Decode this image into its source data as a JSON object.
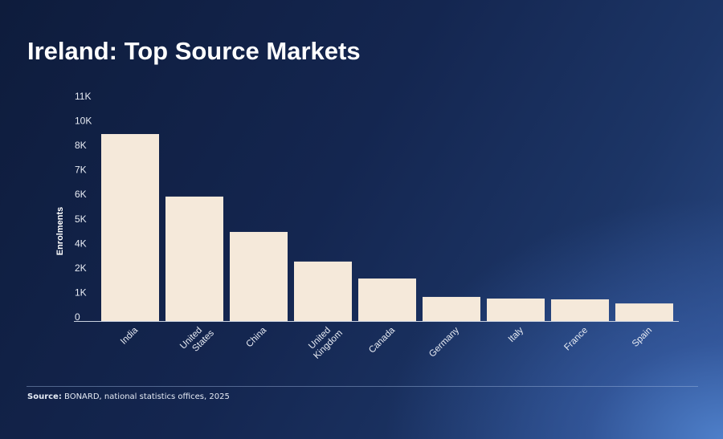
{
  "chart_data": {
    "type": "bar",
    "title": "Ireland: Top Source Markets",
    "xlabel": "",
    "ylabel": "Enrolments",
    "categories": [
      "India",
      "United States",
      "China",
      "United Kingdom",
      "Canada",
      "Germany",
      "Italy",
      "France",
      "Spain"
    ],
    "values": [
      9150,
      6090,
      4360,
      2910,
      2080,
      1180,
      1100,
      1060,
      860
    ],
    "ylim": [
      0,
      10800
    ],
    "yticks": [
      0,
      1200,
      2400,
      3600,
      4800,
      6000,
      7200,
      8400,
      9600,
      10800
    ],
    "ytick_labels": [
      "0",
      "1K",
      "2K",
      "4K",
      "5K",
      "6K",
      "7K",
      "8K",
      "10K",
      "11K"
    ],
    "grid": false,
    "bar_color": "#f5e9da"
  },
  "source": {
    "label": "Source:",
    "text": " BONARD, national statistics offices, 2025"
  }
}
